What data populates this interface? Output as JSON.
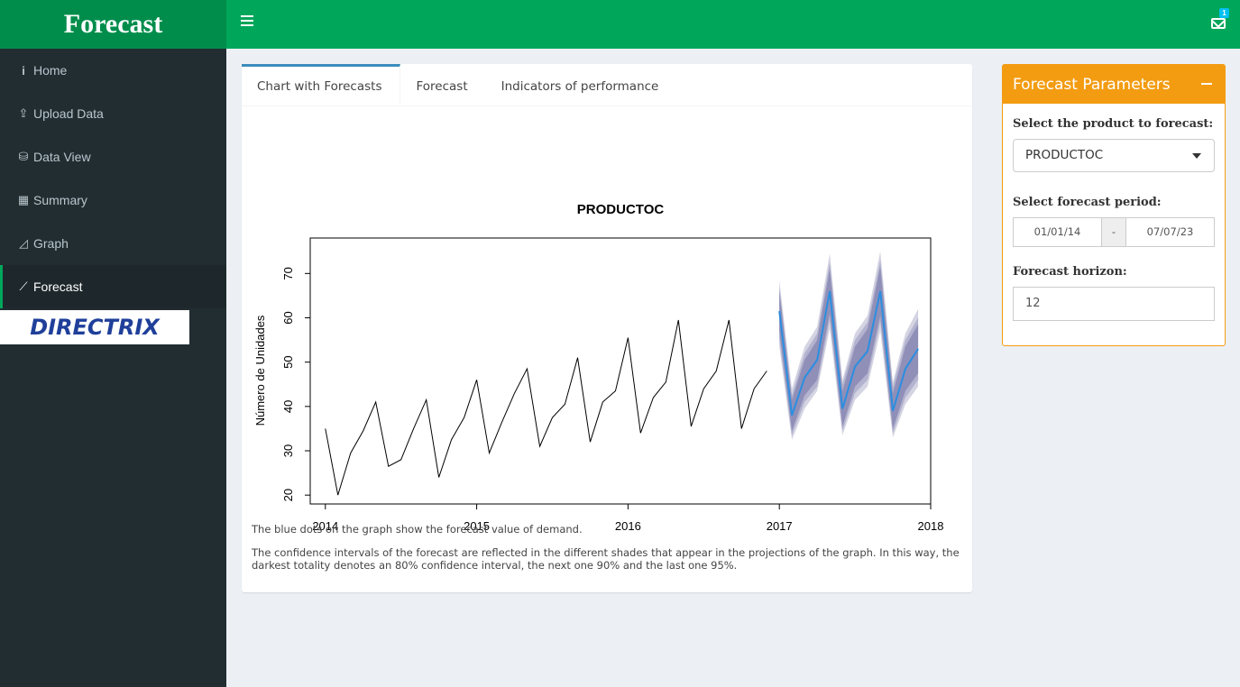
{
  "app": {
    "title": "Forecast",
    "notifications": "1"
  },
  "sidebar": {
    "items": [
      {
        "label": "Home",
        "icon": "info-icon"
      },
      {
        "label": "Upload Data",
        "icon": "upload-icon"
      },
      {
        "label": "Data View",
        "icon": "database-icon"
      },
      {
        "label": "Summary",
        "icon": "table-icon"
      },
      {
        "label": "Graph",
        "icon": "area-chart-icon"
      },
      {
        "label": "Forecast",
        "icon": "line-chart-icon"
      }
    ],
    "brand": "DIRECTRIX"
  },
  "tabs": [
    {
      "label": "Chart with Forecasts"
    },
    {
      "label": "Forecast"
    },
    {
      "label": "Indicators of performance"
    }
  ],
  "notes": {
    "p1": "The blue dots on the graph show the forecast value of demand.",
    "p2": "The confidence intervals of the forecast are reflected in the different shades that appear in the projections of the graph. In this way, the darkest totality denotes an 80% confidence interval, the next one 90% and the last one 95%."
  },
  "params": {
    "title": "Forecast Parameters",
    "product_label": "Select the product to forecast:",
    "product_value": "PRODUCTOC",
    "period_label": "Select forecast period:",
    "period_start": "01/01/14",
    "period_sep": "-",
    "period_end": "07/07/23",
    "horizon_label": "Forecast horizon:",
    "horizon_value": "12"
  },
  "chart_data": {
    "type": "line",
    "title": "PRODUCTOC",
    "xlabel": "",
    "ylabel": "Número de Unidades",
    "xlim": [
      2013.9,
      2018.0
    ],
    "ylim": [
      18,
      78
    ],
    "xticks": [
      "2014",
      "2015",
      "2016",
      "2017",
      "2018"
    ],
    "yticks": [
      "20",
      "30",
      "40",
      "50",
      "60",
      "70"
    ],
    "colors": {
      "history": "#000000",
      "forecast": "#2b8ee0",
      "band80": "#8f8fb8",
      "band90": "#b3b3cf",
      "band95": "#d4d4e3"
    },
    "series": [
      {
        "x": [
          2014.0,
          2014.083,
          2014.167,
          2014.25,
          2014.333,
          2014.417,
          2014.5,
          2014.583,
          2014.667,
          2014.75,
          2014.833,
          2014.917,
          2015.0,
          2015.083,
          2015.167,
          2015.25,
          2015.333,
          2015.417,
          2015.5,
          2015.583,
          2015.667,
          2015.75,
          2015.833,
          2015.917,
          2016.0,
          2016.083,
          2016.167,
          2016.25,
          2016.333,
          2016.417,
          2016.5,
          2016.583,
          2016.667,
          2016.75,
          2016.833,
          2016.917
        ],
        "values": [
          35,
          20,
          29.5,
          34.5,
          41,
          26.5,
          28,
          35,
          41.5,
          24,
          32.5,
          37.5,
          46,
          29.5,
          36.5,
          43,
          48.5,
          31,
          37.5,
          40.5,
          51,
          32,
          41,
          43.5,
          55.5,
          34,
          42,
          45.5,
          59.5,
          35.5,
          44,
          48,
          59.5,
          35,
          44,
          48
        ]
      },
      {
        "x": [
          2017.0,
          2017.083,
          2017.167,
          2017.25,
          2017.333,
          2017.417,
          2017.5,
          2017.583,
          2017.667,
          2017.75,
          2017.833,
          2017.917
        ],
        "values": [
          61.5,
          38,
          46.5,
          50.5,
          66,
          39.5,
          49,
          52.5,
          66,
          39,
          48.5,
          53
        ],
        "lo80": [
          57,
          34.5,
          42.5,
          46,
          61,
          35.5,
          44.5,
          47.5,
          60.5,
          35,
          43.5,
          47.5
        ],
        "hi80": [
          66,
          41.5,
          50.5,
          55,
          71,
          43.5,
          53.5,
          57.5,
          71.5,
          43,
          53.5,
          58.5
        ],
        "lo90": [
          55,
          33.5,
          41,
          44.5,
          59.5,
          34.5,
          43,
          46,
          59,
          34,
          42,
          46
        ],
        "hi90": [
          67,
          42.5,
          52,
          56.5,
          72.5,
          45,
          55,
          59,
          73,
          44.5,
          55,
          60
        ],
        "lo95": [
          53.5,
          32.5,
          39.5,
          43.5,
          57.5,
          33.5,
          41.5,
          44.5,
          57,
          33,
          40.5,
          44.5
        ],
        "hi95": [
          68.5,
          44,
          53.5,
          58,
          74.5,
          46,
          56.5,
          60.5,
          75,
          45.5,
          56.5,
          62
        ]
      }
    ]
  }
}
